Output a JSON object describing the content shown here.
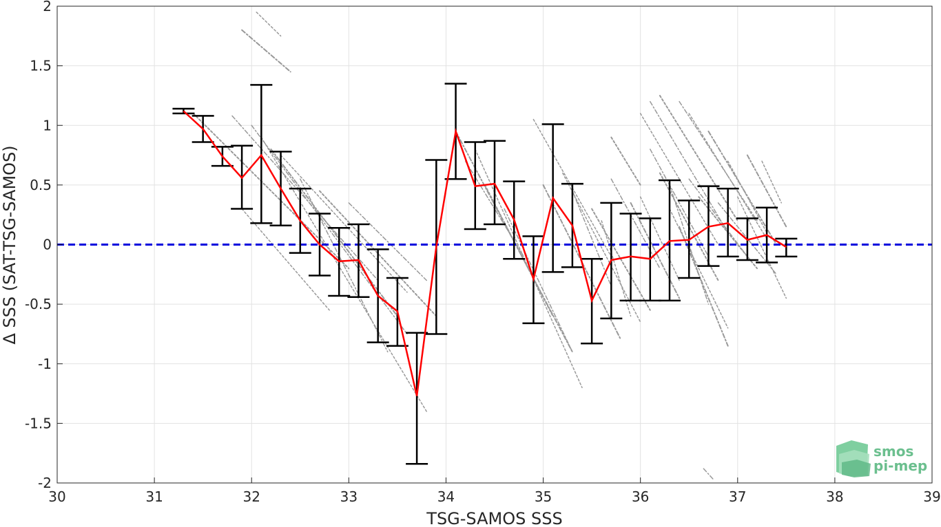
{
  "chart_data": {
    "type": "line",
    "title": "",
    "xlabel": "TSG-SAMOS SSS",
    "ylabel": "Δ SSS (SAT-TSG-SAMOS)",
    "xlim": [
      30,
      39
    ],
    "ylim": [
      -2,
      2
    ],
    "xticks": [
      30,
      31,
      32,
      33,
      34,
      35,
      36,
      37,
      38,
      39
    ],
    "yticks": [
      -2,
      -1.5,
      -1,
      -0.5,
      0,
      0.5,
      1,
      1.5,
      2
    ],
    "xtick_labels": [
      "30",
      "31",
      "32",
      "33",
      "34",
      "35",
      "36",
      "37",
      "38",
      "39"
    ],
    "ytick_labels": [
      "-2",
      "-1.5",
      "-1",
      "-0.5",
      "0",
      "0.5",
      "1",
      "1.5",
      "2"
    ],
    "grid": true,
    "reference_line": {
      "y": 0,
      "style": "dashed",
      "color": "#0000dd"
    },
    "mean_series": {
      "color": "#ff0000",
      "x": [
        31.3,
        31.5,
        31.7,
        31.9,
        32.1,
        32.3,
        32.5,
        32.7,
        32.9,
        33.1,
        33.3,
        33.5,
        33.7,
        33.9,
        34.1,
        34.3,
        34.5,
        34.7,
        34.9,
        35.1,
        35.3,
        35.5,
        35.7,
        35.9,
        36.1,
        36.3,
        36.5,
        36.7,
        36.9,
        37.1,
        37.3,
        37.5
      ],
      "y": [
        1.12,
        0.97,
        0.74,
        0.56,
        0.75,
        0.47,
        0.2,
        0.0,
        -0.14,
        -0.13,
        -0.43,
        -0.56,
        -1.27,
        -0.02,
        0.95,
        0.49,
        0.51,
        0.21,
        -0.29,
        0.39,
        0.16,
        -0.47,
        -0.13,
        -0.1,
        -0.12,
        0.03,
        0.04,
        0.15,
        0.18,
        0.04,
        0.08,
        -0.02
      ]
    },
    "error_bars": {
      "color": "#000000",
      "x": [
        31.3,
        31.5,
        31.7,
        31.9,
        32.1,
        32.3,
        32.5,
        32.7,
        32.9,
        33.1,
        33.3,
        33.5,
        33.7,
        33.9,
        34.1,
        34.3,
        34.5,
        34.7,
        34.9,
        35.1,
        35.3,
        35.5,
        35.7,
        35.9,
        36.1,
        36.3,
        36.5,
        36.7,
        36.9,
        37.1,
        37.3,
        37.5
      ],
      "upper": [
        1.14,
        1.08,
        0.82,
        0.83,
        1.34,
        0.78,
        0.47,
        0.26,
        0.14,
        0.17,
        -0.04,
        -0.28,
        -0.74,
        0.71,
        1.35,
        0.86,
        0.87,
        0.53,
        0.07,
        1.01,
        0.51,
        -0.12,
        0.35,
        0.26,
        0.22,
        0.54,
        0.37,
        0.49,
        0.47,
        0.22,
        0.31,
        0.05
      ],
      "lower": [
        1.1,
        0.86,
        0.66,
        0.3,
        0.18,
        0.16,
        -0.07,
        -0.26,
        -0.43,
        -0.44,
        -0.82,
        -0.85,
        -1.84,
        -0.75,
        0.55,
        0.13,
        0.17,
        -0.12,
        -0.66,
        -0.23,
        -0.19,
        -0.83,
        -0.62,
        -0.47,
        -0.47,
        -0.47,
        -0.28,
        -0.18,
        -0.1,
        -0.13,
        -0.15,
        -0.1
      ]
    },
    "scatter_clusters": {
      "color": "#999999",
      "segments": [
        {
          "x0": 31.9,
          "y0": 1.8,
          "x1": 32.4,
          "y1": 1.45
        },
        {
          "x0": 32.05,
          "y0": 1.95,
          "x1": 32.3,
          "y1": 1.75
        },
        {
          "x0": 31.8,
          "y0": 1.08,
          "x1": 33.3,
          "y1": -0.3
        },
        {
          "x0": 31.4,
          "y0": 1.1,
          "x1": 33.0,
          "y1": -0.2
        },
        {
          "x0": 32.0,
          "y0": 1.0,
          "x1": 33.6,
          "y1": -0.75
        },
        {
          "x0": 32.1,
          "y0": 0.9,
          "x1": 33.8,
          "y1": -1.4
        },
        {
          "x0": 32.2,
          "y0": 0.8,
          "x1": 33.5,
          "y1": -0.6
        },
        {
          "x0": 32.3,
          "y0": 0.75,
          "x1": 33.6,
          "y1": -0.4
        },
        {
          "x0": 32.5,
          "y0": 0.55,
          "x1": 33.4,
          "y1": -0.9
        },
        {
          "x0": 32.7,
          "y0": 0.45,
          "x1": 33.9,
          "y1": -0.6
        },
        {
          "x0": 33.0,
          "y0": 0.35,
          "x1": 33.8,
          "y1": -0.3
        },
        {
          "x0": 31.9,
          "y0": 0.3,
          "x1": 32.8,
          "y1": -0.55
        },
        {
          "x0": 34.1,
          "y0": 0.95,
          "x1": 35.3,
          "y1": -0.9
        },
        {
          "x0": 34.3,
          "y0": 0.8,
          "x1": 35.4,
          "y1": -1.2
        },
        {
          "x0": 34.2,
          "y0": 0.7,
          "x1": 34.8,
          "y1": -0.1
        },
        {
          "x0": 34.4,
          "y0": 0.5,
          "x1": 35.1,
          "y1": -0.6
        },
        {
          "x0": 34.6,
          "y0": 0.3,
          "x1": 35.3,
          "y1": -0.9
        },
        {
          "x0": 34.9,
          "y0": 1.05,
          "x1": 35.7,
          "y1": -0.1
        },
        {
          "x0": 35.0,
          "y0": 0.5,
          "x1": 35.8,
          "y1": -0.8
        },
        {
          "x0": 35.2,
          "y0": 0.6,
          "x1": 36.0,
          "y1": -0.65
        },
        {
          "x0": 35.3,
          "y0": 0.45,
          "x1": 35.7,
          "y1": -0.35
        },
        {
          "x0": 35.5,
          "y0": 0.3,
          "x1": 36.1,
          "y1": -0.55
        },
        {
          "x0": 35.7,
          "y0": 0.55,
          "x1": 36.2,
          "y1": -0.2
        },
        {
          "x0": 35.6,
          "y0": 0.2,
          "x1": 35.9,
          "y1": -0.6
        },
        {
          "x0": 35.9,
          "y0": 0.35,
          "x1": 36.4,
          "y1": -0.45
        },
        {
          "x0": 36.0,
          "y0": 1.1,
          "x1": 36.8,
          "y1": 0.0
        },
        {
          "x0": 36.1,
          "y0": 1.2,
          "x1": 36.9,
          "y1": 0.1
        },
        {
          "x0": 36.2,
          "y0": 1.25,
          "x1": 37.0,
          "y1": 0.2
        },
        {
          "x0": 36.4,
          "y0": 1.2,
          "x1": 37.2,
          "y1": 0.2
        },
        {
          "x0": 36.5,
          "y0": 1.1,
          "x1": 37.3,
          "y1": 0.05
        },
        {
          "x0": 36.7,
          "y0": 0.95,
          "x1": 37.4,
          "y1": 0.0
        },
        {
          "x0": 36.9,
          "y0": 0.7,
          "x1": 37.3,
          "y1": 0.1
        },
        {
          "x0": 36.1,
          "y0": 0.8,
          "x1": 36.7,
          "y1": -0.1
        },
        {
          "x0": 36.2,
          "y0": 0.6,
          "x1": 36.8,
          "y1": -0.3
        },
        {
          "x0": 36.3,
          "y0": 0.5,
          "x1": 36.7,
          "y1": -0.5
        },
        {
          "x0": 36.3,
          "y0": 0.3,
          "x1": 36.9,
          "y1": -0.7
        },
        {
          "x0": 36.4,
          "y0": 0.15,
          "x1": 36.9,
          "y1": -0.85
        },
        {
          "x0": 36.0,
          "y0": 0.4,
          "x1": 36.4,
          "y1": -0.3
        },
        {
          "x0": 36.5,
          "y0": 0.55,
          "x1": 37.1,
          "y1": -0.1
        },
        {
          "x0": 36.6,
          "y0": 0.4,
          "x1": 37.2,
          "y1": -0.2
        },
        {
          "x0": 36.8,
          "y0": 0.35,
          "x1": 37.4,
          "y1": -0.25
        },
        {
          "x0": 37.0,
          "y0": 0.4,
          "x1": 37.5,
          "y1": -0.45
        },
        {
          "x0": 37.1,
          "y0": 0.75,
          "x1": 37.5,
          "y1": 0.15
        },
        {
          "x0": 37.25,
          "y0": 0.7,
          "x1": 37.45,
          "y1": 0.35
        },
        {
          "x0": 36.65,
          "y0": -1.88,
          "x1": 36.75,
          "y1": -1.97
        },
        {
          "x0": 35.7,
          "y0": 0.9,
          "x1": 36.0,
          "y1": 0.5
        }
      ]
    }
  },
  "logo": {
    "line1": "smos",
    "line2": "pi-mep",
    "color": "#6bbf8e"
  }
}
